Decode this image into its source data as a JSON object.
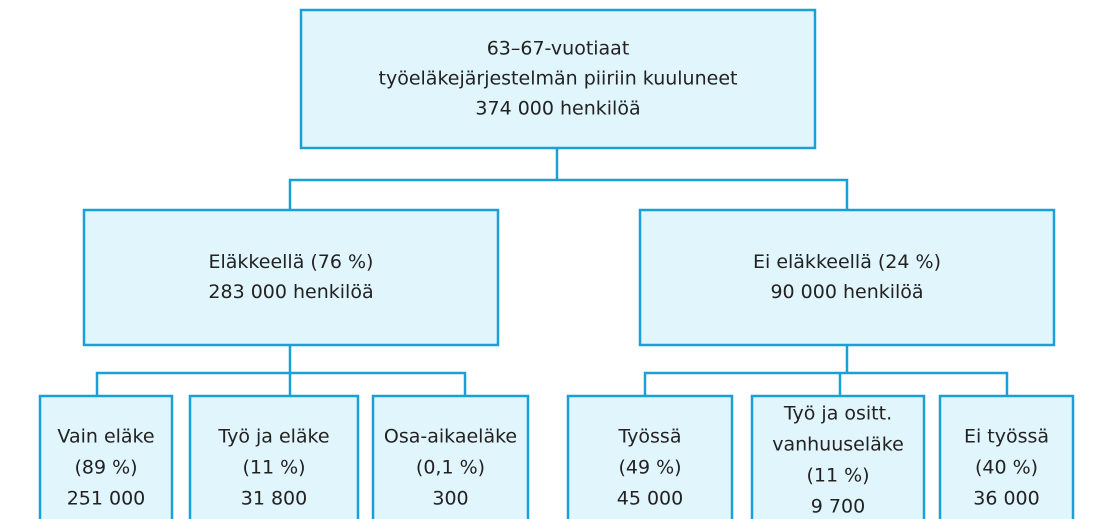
{
  "nodes": [
    {
      "lines": [
        "63–67-vuotiaat",
        "työeläkejärjestelmän piiriin kuuluneet",
        "374 000 henkilöä"
      ]
    },
    {
      "lines": [
        "Eläkkeellä (76 %)",
        "283 000 henkilöä"
      ]
    },
    {
      "lines": [
        "Ei eläkkeellä (24 %)",
        "90 000 henkilöä"
      ]
    },
    {
      "lines": [
        "Vain eläke",
        "(89 %)",
        "251 000"
      ]
    },
    {
      "lines": [
        "Työ ja eläke",
        "(11 %)",
        "31 800"
      ]
    },
    {
      "lines": [
        "Osa-aikaeläke",
        "(0,1 %)",
        "300"
      ]
    },
    {
      "lines": [
        "Työssä",
        "(49 %)",
        "45 000"
      ]
    },
    {
      "lines": [
        "Työ ja ositt.",
        "vanhuuseläke",
        "(11 %)",
        "9 700"
      ]
    },
    {
      "lines": [
        "Ei työssä",
        "(40 %)",
        "36 000"
      ]
    }
  ]
}
